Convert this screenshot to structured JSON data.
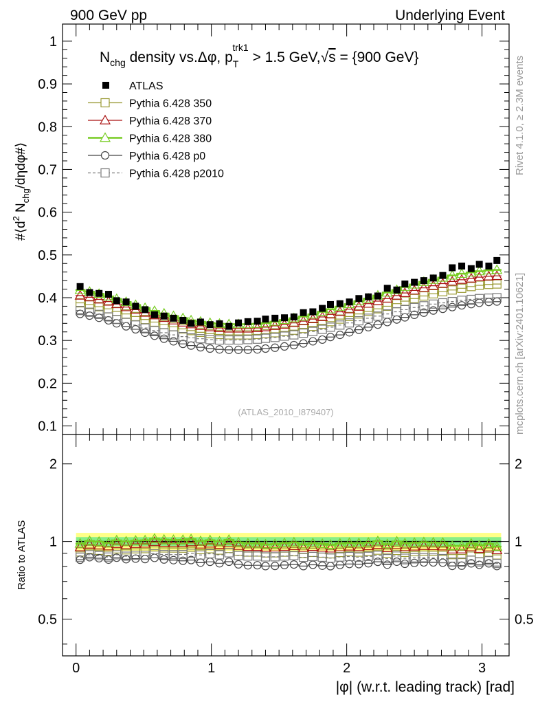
{
  "header": {
    "left": "900 GeV pp",
    "right": "Underlying Event"
  },
  "side_labels": {
    "rivet": "Rivet 4.1.0, ≥ 2.3M events",
    "mcplots": "mcplots.cern.ch [arXiv:2401.10621]"
  },
  "chart_data": [
    {
      "type": "scatter",
      "title": "N_chg density vs. Δφ, p_T^trk1 > 1.5 GeV, √s = {900 GeV}",
      "title_parts": {
        "n": "N",
        "chg": "chg",
        "mid": " density vs.Δφ, p",
        "T": "T",
        "trk1": "trk1",
        "gt": " > 1.5 GeV,",
        "root": "√",
        "s": "s",
        "tail": " = {900 GeV}"
      },
      "ylabel": "#⟨d² N_chg/dηdφ#⟩",
      "ylabel_parts": {
        "a": "#⟨d",
        "two": "2",
        "b": " N",
        "chg": "chg",
        "c": "/dηdφ#⟩"
      },
      "watermark": "(ATLAS_2010_I879407)",
      "xlim": [
        -0.1,
        3.2
      ],
      "ylim": [
        0.08,
        1.04
      ],
      "yticks": [
        "0.1",
        "0.2",
        "0.3",
        "0.4",
        "0.5",
        "0.6",
        "0.7",
        "0.8",
        "0.9",
        "1"
      ],
      "legend_position": "top-left",
      "x": [
        0.03,
        0.1,
        0.17,
        0.24,
        0.3,
        0.37,
        0.44,
        0.51,
        0.58,
        0.65,
        0.72,
        0.79,
        0.85,
        0.92,
        0.99,
        1.06,
        1.13,
        1.2,
        1.27,
        1.34,
        1.4,
        1.47,
        1.54,
        1.61,
        1.68,
        1.75,
        1.82,
        1.88,
        1.95,
        2.02,
        2.09,
        2.16,
        2.23,
        2.3,
        2.37,
        2.43,
        2.5,
        2.57,
        2.64,
        2.71,
        2.78,
        2.85,
        2.92,
        2.98,
        3.05,
        3.11
      ],
      "series": [
        {
          "name": "ATLAS",
          "color": "#000000",
          "marker": "filled-square",
          "values": [
            0.426,
            0.412,
            0.41,
            0.408,
            0.393,
            0.39,
            0.38,
            0.372,
            0.36,
            0.357,
            0.352,
            0.347,
            0.34,
            0.343,
            0.337,
            0.339,
            0.333,
            0.341,
            0.344,
            0.345,
            0.35,
            0.352,
            0.353,
            0.355,
            0.365,
            0.367,
            0.375,
            0.384,
            0.386,
            0.39,
            0.398,
            0.402,
            0.404,
            0.422,
            0.418,
            0.432,
            0.436,
            0.44,
            0.446,
            0.452,
            0.47,
            0.474,
            0.468,
            0.478,
            0.474,
            0.487
          ]
        },
        {
          "name": "Pythia 6.428 350",
          "color": "#999933",
          "marker": "open-square",
          "values": [
            0.388,
            0.384,
            0.379,
            0.374,
            0.368,
            0.362,
            0.356,
            0.349,
            0.343,
            0.337,
            0.332,
            0.327,
            0.323,
            0.319,
            0.316,
            0.314,
            0.313,
            0.313,
            0.313,
            0.314,
            0.316,
            0.318,
            0.321,
            0.324,
            0.328,
            0.333,
            0.338,
            0.344,
            0.35,
            0.356,
            0.362,
            0.368,
            0.374,
            0.38,
            0.386,
            0.392,
            0.398,
            0.404,
            0.409,
            0.414,
            0.418,
            0.422,
            0.426,
            0.429,
            0.431,
            0.432
          ]
        },
        {
          "name": "Pythia 6.428 370",
          "color": "#aa1111",
          "marker": "open-triangle",
          "values": [
            0.405,
            0.401,
            0.396,
            0.391,
            0.385,
            0.378,
            0.372,
            0.365,
            0.359,
            0.353,
            0.347,
            0.342,
            0.338,
            0.334,
            0.331,
            0.329,
            0.328,
            0.328,
            0.328,
            0.329,
            0.331,
            0.334,
            0.337,
            0.341,
            0.345,
            0.35,
            0.355,
            0.361,
            0.367,
            0.373,
            0.379,
            0.386,
            0.392,
            0.398,
            0.405,
            0.411,
            0.417,
            0.423,
            0.428,
            0.433,
            0.438,
            0.442,
            0.445,
            0.448,
            0.45,
            0.451
          ]
        },
        {
          "name": "Pythia 6.428 380",
          "color": "#77cc22",
          "marker": "open-triangle-line",
          "values": [
            0.418,
            0.414,
            0.409,
            0.403,
            0.397,
            0.39,
            0.383,
            0.376,
            0.369,
            0.363,
            0.357,
            0.352,
            0.347,
            0.344,
            0.341,
            0.339,
            0.338,
            0.338,
            0.338,
            0.339,
            0.341,
            0.344,
            0.348,
            0.352,
            0.356,
            0.361,
            0.367,
            0.373,
            0.379,
            0.385,
            0.392,
            0.398,
            0.405,
            0.412,
            0.418,
            0.425,
            0.431,
            0.437,
            0.442,
            0.447,
            0.452,
            0.456,
            0.459,
            0.462,
            0.464,
            0.465
          ]
        },
        {
          "name": "Pythia 6.428 p0",
          "color": "#444444",
          "marker": "open-circle",
          "values": [
            0.362,
            0.358,
            0.353,
            0.347,
            0.34,
            0.333,
            0.326,
            0.318,
            0.311,
            0.304,
            0.298,
            0.292,
            0.288,
            0.284,
            0.281,
            0.279,
            0.278,
            0.278,
            0.278,
            0.279,
            0.281,
            0.283,
            0.286,
            0.289,
            0.293,
            0.298,
            0.302,
            0.308,
            0.313,
            0.319,
            0.325,
            0.331,
            0.337,
            0.343,
            0.349,
            0.354,
            0.36,
            0.365,
            0.37,
            0.374,
            0.378,
            0.382,
            0.385,
            0.388,
            0.39,
            0.391
          ]
        },
        {
          "name": "Pythia 6.428 p2010",
          "color": "#777777",
          "marker": "open-square-dashed",
          "values": [
            0.37,
            0.366,
            0.361,
            0.355,
            0.349,
            0.342,
            0.336,
            0.329,
            0.323,
            0.318,
            0.313,
            0.309,
            0.306,
            0.304,
            0.302,
            0.301,
            0.301,
            0.301,
            0.302,
            0.303,
            0.305,
            0.307,
            0.31,
            0.313,
            0.317,
            0.321,
            0.326,
            0.331,
            0.336,
            0.341,
            0.346,
            0.352,
            0.357,
            0.362,
            0.367,
            0.372,
            0.377,
            0.381,
            0.385,
            0.388,
            0.391,
            0.394,
            0.396,
            0.398,
            0.399,
            0.4
          ]
        }
      ]
    },
    {
      "type": "scatter",
      "title": "",
      "ylabel": "Ratio to ATLAS",
      "xlabel": "|φ| (w.r.t. leading track) [rad]",
      "xlim": [
        -0.1,
        3.2
      ],
      "ylim": [
        0.36,
        2.6
      ],
      "scale": "log",
      "xticks": [
        "0",
        "1",
        "2",
        "3"
      ],
      "yticks": [
        "0.5",
        "1",
        "2"
      ],
      "band_inner": [
        0.96,
        1.04
      ],
      "band_outer": [
        0.92,
        1.08
      ],
      "colors": {
        "inner_band": "#88ee88",
        "outer_band": "#ffff88"
      }
    }
  ]
}
